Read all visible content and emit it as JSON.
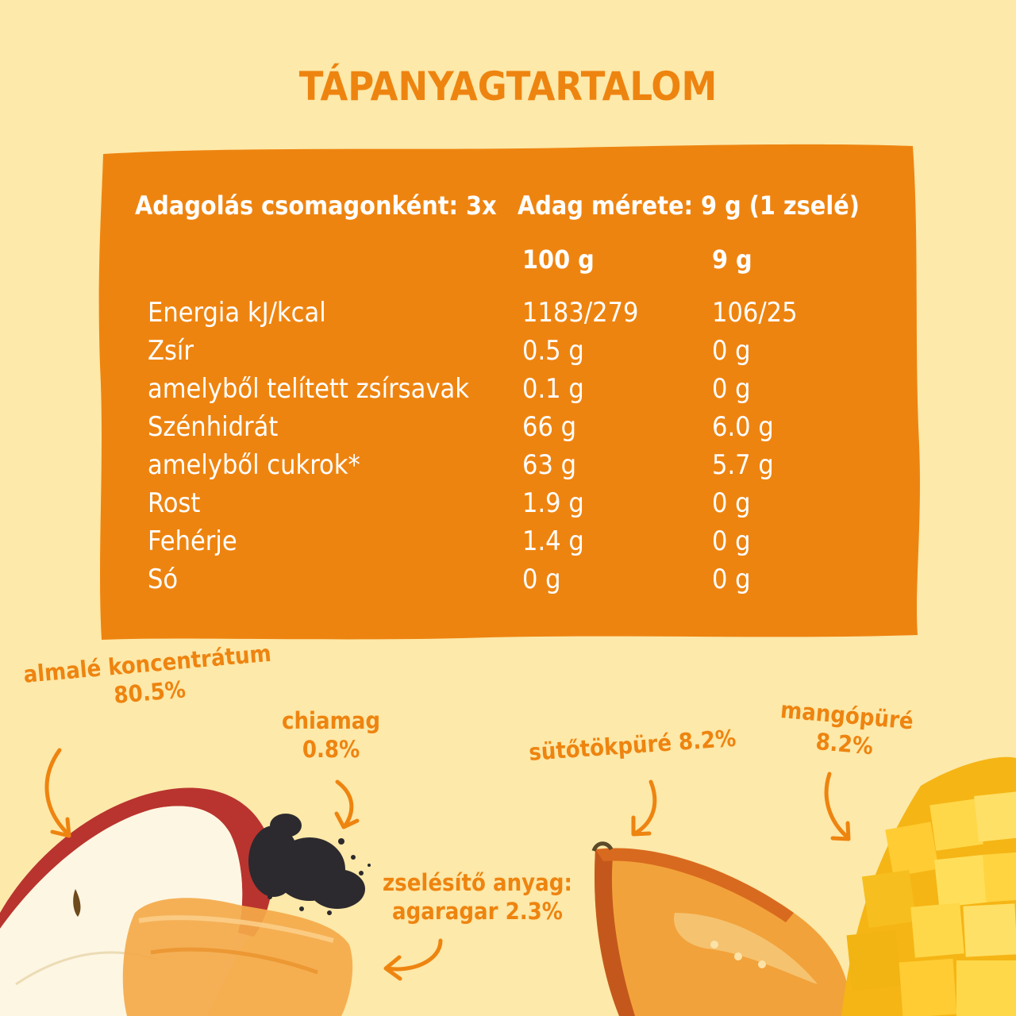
{
  "title": "TÁPANYAGTARTALOM",
  "panel": {
    "servings_per_pack": "Adagolás csomagonként: 3x",
    "serving_size": "Adag mérete: 9 g (1 zselé)",
    "col_100g": "100 g",
    "col_9g": "9 g",
    "rows": [
      {
        "label": "Energia kJ/kcal",
        "v100": "1183/279",
        "v9": "106/25"
      },
      {
        "label": "Zsír",
        "v100": "0.5 g",
        "v9": "0 g"
      },
      {
        "label": "amelyből telített zsírsavak",
        "v100": "0.1 g",
        "v9": "0 g"
      },
      {
        "label": "Szénhidrát",
        "v100": "66 g",
        "v9": "6.0 g"
      },
      {
        "label": "amelyből cukrok*",
        "v100": "63 g",
        "v9": "5.7 g"
      },
      {
        "label": "Rost",
        "v100": "1.9 g",
        "v9": "0 g"
      },
      {
        "label": "Fehérje",
        "v100": "1.4 g",
        "v9": "0 g"
      },
      {
        "label": "Só",
        "v100": "0 g",
        "v9": "0 g"
      }
    ]
  },
  "annotations": {
    "apple": {
      "line1": "almalé koncentrátum",
      "line2": "80.5%"
    },
    "chia": {
      "line1": "chiamag",
      "line2": "0.8%"
    },
    "agar": {
      "line1": "zselésítő anyag:",
      "line2": "agaragar 2.3%"
    },
    "pumpkin": {
      "line1": "sütőtökpüré 8.2%"
    },
    "mango": {
      "line1": "mangópüré",
      "line2": "8.2%"
    }
  },
  "colors": {
    "background": "#fde9a9",
    "accent": "#ee8410",
    "panel_text": "#ffffff"
  },
  "icons": [
    "apple-slice",
    "chia-seeds",
    "agar-jelly",
    "pumpkin-slice",
    "mango-cubes",
    "curved-arrow"
  ]
}
